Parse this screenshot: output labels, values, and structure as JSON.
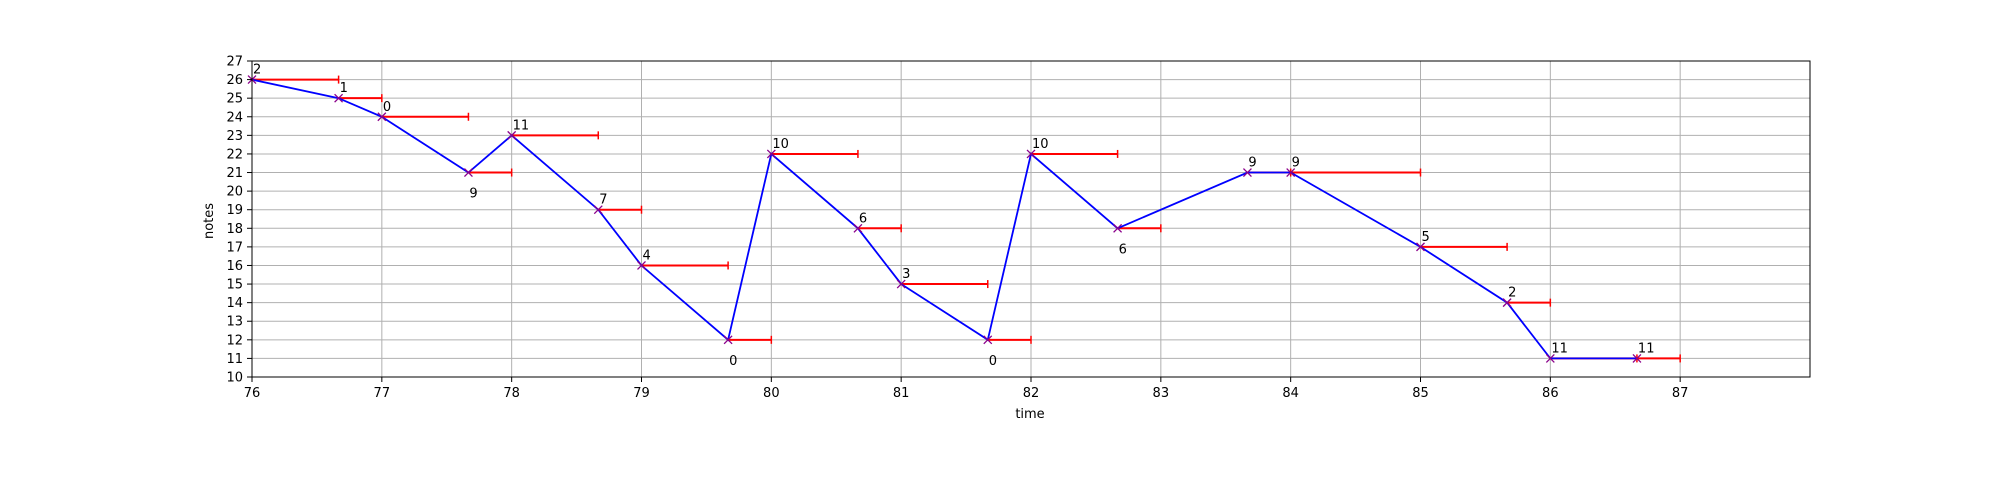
{
  "chart_data": {
    "type": "line",
    "title": "",
    "xlabel": "time",
    "ylabel": "notes",
    "xlim": [
      76,
      88
    ],
    "ylim": [
      10,
      27
    ],
    "x_ticks": [
      76,
      77,
      78,
      79,
      80,
      81,
      82,
      83,
      84,
      85,
      86,
      87
    ],
    "y_ticks": [
      10,
      11,
      12,
      13,
      14,
      15,
      16,
      17,
      18,
      19,
      20,
      21,
      22,
      23,
      24,
      25,
      26,
      27
    ],
    "grid": true,
    "colors": {
      "melody": "#0000ff",
      "duration": "#ff0000",
      "marker": "#8b008b"
    },
    "notes": [
      {
        "time": 76.0,
        "pitch": 26,
        "duration": 0.667,
        "label": "2",
        "label_pos": "above"
      },
      {
        "time": 76.667,
        "pitch": 25,
        "duration": 0.333,
        "label": "1",
        "label_pos": "above"
      },
      {
        "time": 77.0,
        "pitch": 24,
        "duration": 0.667,
        "label": "0",
        "label_pos": "above"
      },
      {
        "time": 77.667,
        "pitch": 21,
        "duration": 0.333,
        "label": "9",
        "label_pos": "below"
      },
      {
        "time": 78.0,
        "pitch": 23,
        "duration": 0.667,
        "label": "11",
        "label_pos": "above"
      },
      {
        "time": 78.667,
        "pitch": 19,
        "duration": 0.333,
        "label": "7",
        "label_pos": "above"
      },
      {
        "time": 79.0,
        "pitch": 16,
        "duration": 0.667,
        "label": "4",
        "label_pos": "above"
      },
      {
        "time": 79.667,
        "pitch": 12,
        "duration": 0.333,
        "label": "0",
        "label_pos": "below"
      },
      {
        "time": 80.0,
        "pitch": 22,
        "duration": 0.667,
        "label": "10",
        "label_pos": "above"
      },
      {
        "time": 80.667,
        "pitch": 18,
        "duration": 0.333,
        "label": "6",
        "label_pos": "above"
      },
      {
        "time": 81.0,
        "pitch": 15,
        "duration": 0.667,
        "label": "3",
        "label_pos": "above"
      },
      {
        "time": 81.667,
        "pitch": 12,
        "duration": 0.333,
        "label": "0",
        "label_pos": "below"
      },
      {
        "time": 82.0,
        "pitch": 22,
        "duration": 0.667,
        "label": "10",
        "label_pos": "above"
      },
      {
        "time": 82.667,
        "pitch": 18,
        "duration": 0.333,
        "label": "6",
        "label_pos": "below"
      },
      {
        "time": 83.667,
        "pitch": 21,
        "duration": 0.333,
        "label": "9",
        "label_pos": "above"
      },
      {
        "time": 84.0,
        "pitch": 21,
        "duration": 1.0,
        "label": "9",
        "label_pos": "above"
      },
      {
        "time": 85.0,
        "pitch": 17,
        "duration": 0.667,
        "label": "5",
        "label_pos": "above"
      },
      {
        "time": 85.667,
        "pitch": 14,
        "duration": 0.333,
        "label": "2",
        "label_pos": "above"
      },
      {
        "time": 86.0,
        "pitch": 11,
        "duration": 0.667,
        "label": "11",
        "label_pos": "above"
      },
      {
        "time": 86.667,
        "pitch": 11,
        "duration": 0.333,
        "label": "11",
        "label_pos": "above"
      }
    ]
  }
}
